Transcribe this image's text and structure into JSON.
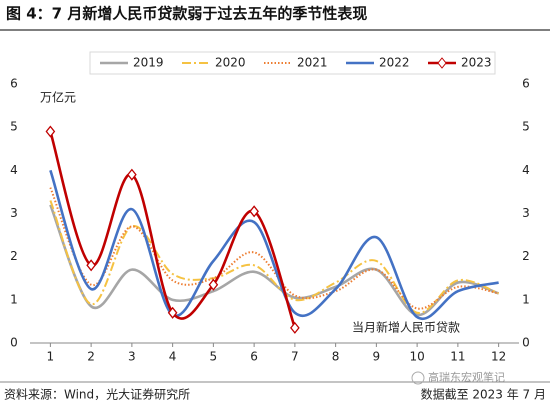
{
  "chart_data": {
    "type": "line",
    "title": "图 4：7 月新增人民币贷款弱于过去五年的季节性表现",
    "y_label": "万亿元",
    "annotation": "当月新增人民币贷款",
    "source": "资料来源：Wind，光大证券研究所",
    "note": "数据截至 2023 年 7 月",
    "watermark": "高瑞东宏观笔记",
    "x": [
      1,
      2,
      3,
      4,
      5,
      6,
      7,
      8,
      9,
      10,
      11,
      12
    ],
    "xlim": [
      0.5,
      12.5
    ],
    "xticks": [
      1,
      2,
      3,
      4,
      5,
      6,
      7,
      8,
      9,
      10,
      11,
      12
    ],
    "ylim": [
      0,
      6
    ],
    "yticks": [
      0,
      1,
      2,
      3,
      4,
      5,
      6
    ],
    "y2lim": [
      0,
      6
    ],
    "y2ticks": [
      0,
      1,
      2,
      3,
      4,
      5,
      6
    ],
    "series": [
      {
        "name": "2019",
        "color": "#a6a6a6",
        "style": "solid",
        "values": [
          3.2,
          0.85,
          1.7,
          1.0,
          1.2,
          1.65,
          1.05,
          1.3,
          1.7,
          0.65,
          1.4,
          1.15
        ]
      },
      {
        "name": "2020",
        "color": "#f5c242",
        "style": "dashdot",
        "values": [
          3.3,
          0.9,
          2.7,
          1.6,
          1.5,
          1.8,
          1.0,
          1.4,
          1.9,
          0.7,
          1.45,
          1.15
        ]
      },
      {
        "name": "2021",
        "color": "#ed7d31",
        "style": "dotted",
        "values": [
          3.6,
          1.35,
          2.7,
          1.45,
          1.5,
          2.1,
          1.1,
          1.2,
          1.7,
          0.8,
          1.3,
          1.15
        ]
      },
      {
        "name": "2022",
        "color": "#4472c4",
        "style": "solid",
        "values": [
          4.0,
          1.25,
          3.1,
          0.65,
          1.9,
          2.8,
          0.7,
          1.25,
          2.45,
          0.6,
          1.2,
          1.4
        ]
      },
      {
        "name": "2023",
        "color": "#c00000",
        "style": "solid",
        "marker": "diamond",
        "values": [
          4.9,
          1.8,
          3.9,
          0.7,
          1.35,
          3.05,
          0.35,
          null,
          null,
          null,
          null,
          null
        ]
      }
    ]
  }
}
